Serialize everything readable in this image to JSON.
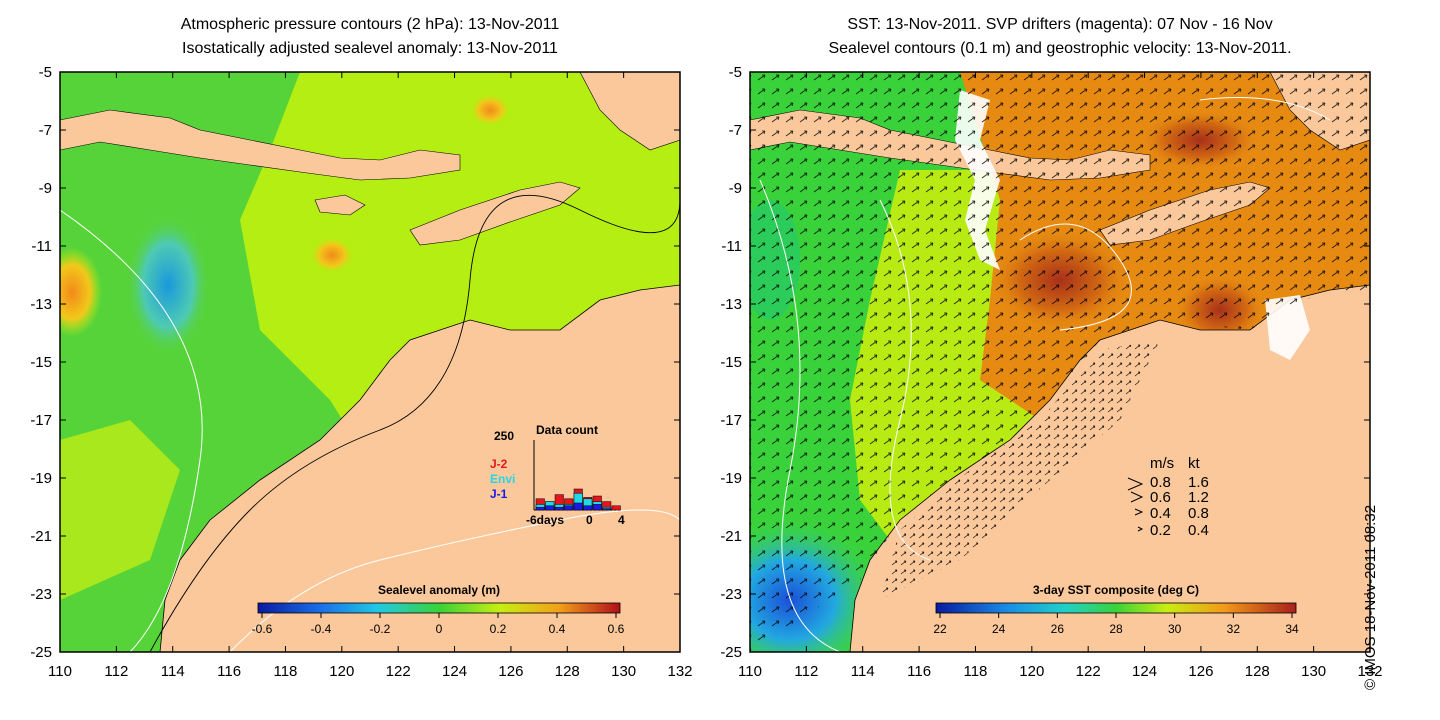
{
  "left_panel": {
    "title_line1": "Atmospheric pressure contours (2 hPa): 13-Nov-2011",
    "title_line2": "Isostatically adjusted sealevel anomaly: 13-Nov-2011",
    "colorbar": {
      "label": "Sealevel anomaly (m)",
      "ticks": [
        "-0.6",
        "-0.4",
        "-0.2",
        "0",
        "0.2",
        "0.4",
        "0.6"
      ]
    },
    "data_count": {
      "title": "Data count",
      "ymax_label": "250",
      "legend": [
        {
          "label": "J-2",
          "color": "#e8141b"
        },
        {
          "label": "Envi",
          "color": "#22d8e6"
        },
        {
          "label": "J-1",
          "color": "#1a1ae6"
        }
      ],
      "xlabels": [
        "-6days",
        "0",
        "4"
      ],
      "bars_j2": [
        40,
        30,
        55,
        40,
        75,
        45,
        50,
        30,
        15
      ],
      "bars_envi": [
        20,
        30,
        20,
        20,
        60,
        40,
        30,
        10,
        0
      ],
      "bars_j1": [
        10,
        15,
        10,
        15,
        25,
        15,
        20,
        5,
        0
      ]
    }
  },
  "right_panel": {
    "title_line1": "SST: 13-Nov-2011. SVP drifters (magenta): 07 Nov - 16 Nov",
    "title_line2": "Sealevel contours (0.1 m) and geostrophic velocity: 13-Nov-2011.",
    "colorbar": {
      "label": "3-day SST composite (deg C)",
      "ticks": [
        "22",
        "24",
        "26",
        "28",
        "30",
        "32",
        "34"
      ]
    },
    "speed_legend": {
      "header_ms": "m/s",
      "header_kt": "kt",
      "rows": [
        {
          "ms": "0.8",
          "kt": "1.6"
        },
        {
          "ms": "0.6",
          "kt": "1.2"
        },
        {
          "ms": "0.4",
          "kt": "0.8"
        },
        {
          "ms": "0.2",
          "kt": "0.4"
        }
      ]
    }
  },
  "axes": {
    "lat_labels": [
      "-5",
      "-7",
      "-9",
      "-11",
      "-13",
      "-15",
      "-17",
      "-19",
      "-21",
      "-23",
      "-25"
    ],
    "lon_labels": [
      "110",
      "112",
      "114",
      "116",
      "118",
      "120",
      "122",
      "124",
      "126",
      "128",
      "130",
      "132"
    ]
  },
  "copyright": "© IMOS 18-Nov-2011 08:32",
  "colors": {
    "land": "#fac89b",
    "ocean_green": "#57d33a",
    "ocean_lime": "#b5ee12",
    "anomaly_cold": "#1ba8d8",
    "anomaly_warm": "#f2a51c",
    "sst_orange": "#e68a12",
    "sst_warm": "#b84a12"
  }
}
